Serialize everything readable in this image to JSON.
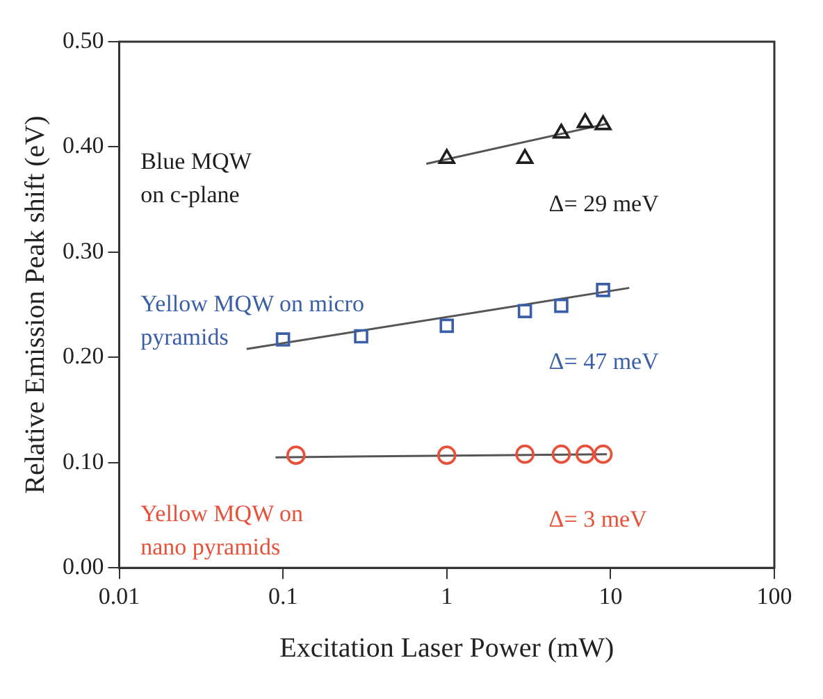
{
  "chart_data": {
    "type": "scatter",
    "xlabel": "Excitation Laser Power (mW)",
    "ylabel": "Relative Emission Peak shift (eV)",
    "log": "x",
    "xlim": [
      0.01,
      100
    ],
    "xticks": [
      0.01,
      0.1,
      1,
      10,
      100
    ],
    "ylim": [
      0,
      0.5
    ],
    "yticks": [
      {
        "value": 0,
        "label": "0.00"
      },
      {
        "value": 0.1,
        "label": "0.10"
      },
      {
        "value": 0.2,
        "label": "0.20"
      },
      {
        "value": 0.3,
        "label": "0.30"
      },
      {
        "value": 0.4,
        "label": "0.40"
      },
      {
        "value": 0.5,
        "label": "0.50"
      }
    ],
    "grid": false,
    "legend": false,
    "series": [
      {
        "name": "Blue MQW on c-plane",
        "color": "#1e1e1e",
        "marker": "triangle",
        "x": [
          1,
          3,
          5,
          7,
          9
        ],
        "values": [
          0.389,
          0.389,
          0.413,
          0.423,
          0.421
        ]
      },
      {
        "name": "Yellow MQW on micro pyramids",
        "color": "#3a5fa8",
        "marker": "square",
        "x": [
          0.1,
          0.3,
          1,
          3,
          5,
          9
        ],
        "values": [
          0.217,
          0.22,
          0.23,
          0.244,
          0.249,
          0.264
        ]
      },
      {
        "name": "Yellow MQW on nano pyramids",
        "color": "#e8503a",
        "marker": "circle",
        "x": [
          0.12,
          1,
          3,
          5,
          7,
          9
        ],
        "values": [
          0.107,
          0.107,
          0.108,
          0.108,
          0.108,
          0.108
        ]
      },
      {
        "type": "line",
        "color": "#555555",
        "marker": "none",
        "x": [
          0.75,
          9.5
        ],
        "values": [
          0.384,
          0.422
        ]
      },
      {
        "type": "line",
        "color": "#555555",
        "marker": "none",
        "x": [
          0.06,
          13
        ],
        "values": [
          0.208,
          0.266
        ]
      },
      {
        "type": "line",
        "color": "#555555",
        "marker": "none",
        "x": [
          0.09,
          9.5
        ],
        "values": [
          0.105,
          0.108
        ]
      }
    ],
    "annotations": [
      "Δ= 29 meV",
      "Δ= 47 meV",
      "Δ= 3 meV"
    ]
  }
}
